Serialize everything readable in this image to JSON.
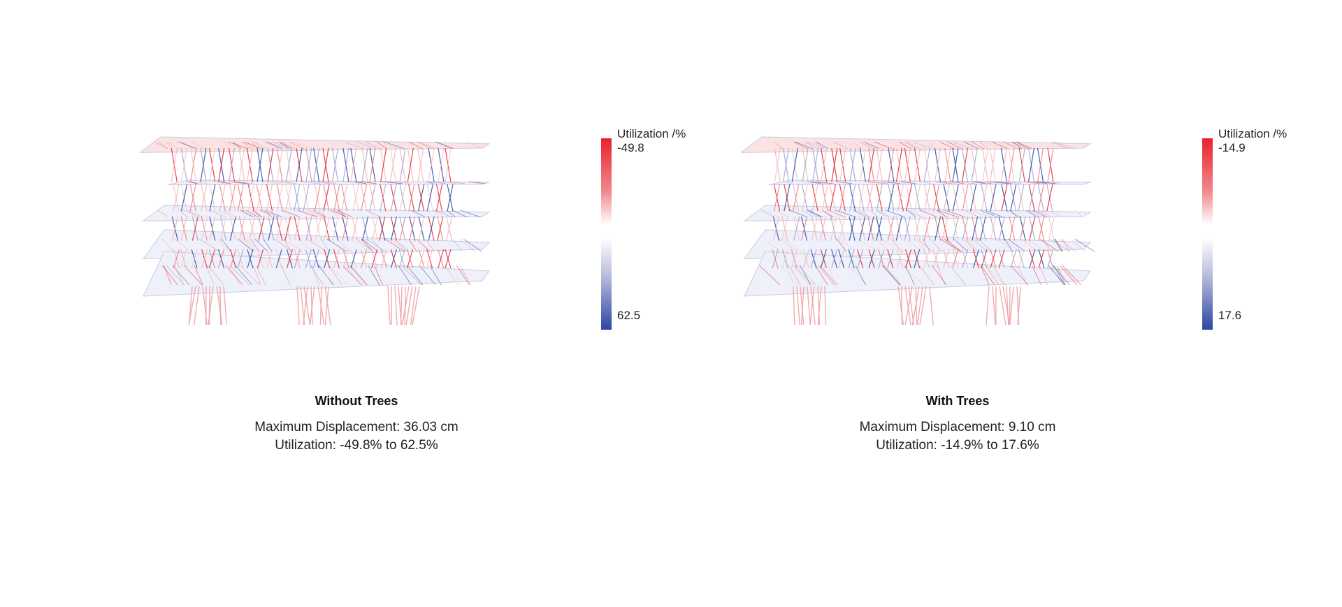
{
  "panels": [
    {
      "title": "Without Trees",
      "displacement": "Maximum Displacement: 36.03 cm",
      "utilization": "Utilization: -49.8% to 62.5%",
      "legend": {
        "title": "Utilization /%",
        "max": "-49.8",
        "min": "62.5"
      }
    },
    {
      "title": "With Trees",
      "displacement": "Maximum Displacement: 9.10 cm",
      "utilization": "Utilization: -14.9% to 17.6%",
      "legend": {
        "title": "Utilization /%",
        "max": "-14.9",
        "min": "17.6"
      }
    }
  ],
  "colors": {
    "tension": "#e8232b",
    "compression": "#2b47a1",
    "neutral": "#ffffff"
  }
}
